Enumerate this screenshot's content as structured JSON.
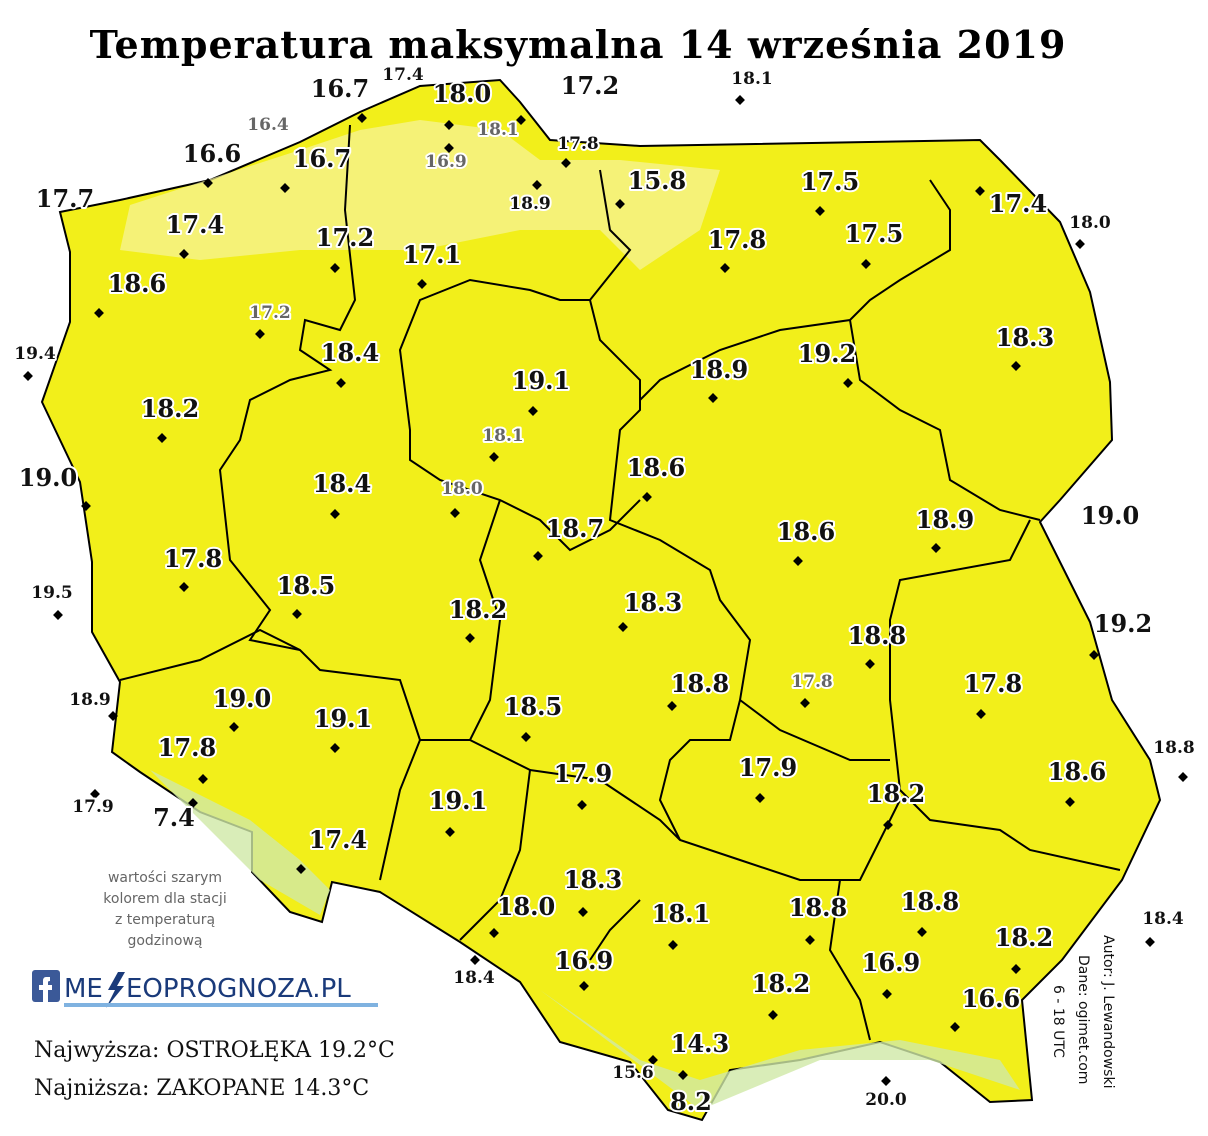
{
  "title": "Temperatura maksymalna 14 września 2019",
  "note": [
    "wartości szarym",
    "kolorem dla stacji",
    "z temperaturą",
    "godzinową"
  ],
  "logo": [
    "ME",
    "EOPROGNOZA.PL"
  ],
  "highest": "Najwyższa: OSTROŁĘKA 19.2°C",
  "lowest": "Najniższa: ZAKOPANE 14.3°C",
  "credits": [
    "Autor: J. Lewandowski",
    "Dane: ogimet.com",
    "6 - 18 UTC"
  ],
  "stations": [
    {
      "temp": "17.4",
      "gray": false
    },
    {
      "temp": "16.7",
      "gray": false
    },
    {
      "temp": "18.0",
      "gray": false
    },
    {
      "temp": "17.2",
      "gray": false
    },
    {
      "temp": "18.1",
      "gray": false
    },
    {
      "temp": "16.4",
      "gray": true
    },
    {
      "temp": "18.1",
      "gray": true
    },
    {
      "temp": "17.8",
      "gray": false
    },
    {
      "temp": "16.9",
      "gray": true
    },
    {
      "temp": "16.6",
      "gray": false
    },
    {
      "temp": "16.7",
      "gray": false
    },
    {
      "temp": "18.9",
      "gray": false
    },
    {
      "temp": "15.8",
      "gray": false
    },
    {
      "temp": "17.5",
      "gray": false
    },
    {
      "temp": "17.7",
      "gray": false
    },
    {
      "temp": "17.4",
      "gray": false
    },
    {
      "temp": "18.0",
      "gray": false
    },
    {
      "temp": "17.4",
      "gray": false
    },
    {
      "temp": "17.2",
      "gray": false
    },
    {
      "temp": "17.8",
      "gray": false
    },
    {
      "temp": "17.5",
      "gray": false
    },
    {
      "temp": "17.1",
      "gray": false
    },
    {
      "temp": "18.6",
      "gray": false
    },
    {
      "temp": "17.2",
      "gray": true
    },
    {
      "temp": "19.4",
      "gray": false
    },
    {
      "temp": "18.4",
      "gray": false
    },
    {
      "temp": "19.1",
      "gray": false
    },
    {
      "temp": "18.9",
      "gray": false
    },
    {
      "temp": "19.2",
      "gray": false
    },
    {
      "temp": "18.3",
      "gray": false
    },
    {
      "temp": "18.2",
      "gray": false
    },
    {
      "temp": "18.1",
      "gray": true
    },
    {
      "temp": "19.0",
      "gray": false
    },
    {
      "temp": "18.4",
      "gray": false
    },
    {
      "temp": "18.0",
      "gray": true
    },
    {
      "temp": "18.6",
      "gray": false
    },
    {
      "temp": "18.7",
      "gray": false
    },
    {
      "temp": "18.6",
      "gray": false
    },
    {
      "temp": "18.9",
      "gray": false
    },
    {
      "temp": "19.0",
      "gray": false
    },
    {
      "temp": "17.8",
      "gray": false
    },
    {
      "temp": "19.5",
      "gray": false
    },
    {
      "temp": "18.5",
      "gray": false
    },
    {
      "temp": "18.3",
      "gray": false
    },
    {
      "temp": "18.2",
      "gray": false
    },
    {
      "temp": "19.2",
      "gray": false
    },
    {
      "temp": "18.8",
      "gray": false
    },
    {
      "temp": "17.8",
      "gray": true
    },
    {
      "temp": "18.8",
      "gray": false
    },
    {
      "temp": "17.8",
      "gray": false
    },
    {
      "temp": "18.9",
      "gray": false
    },
    {
      "temp": "19.0",
      "gray": false
    },
    {
      "temp": "19.1",
      "gray": false
    },
    {
      "temp": "18.5",
      "gray": false
    },
    {
      "temp": "17.8",
      "gray": false
    },
    {
      "temp": "18.8",
      "gray": false
    },
    {
      "temp": "17.9",
      "gray": false
    },
    {
      "temp": "17.9",
      "gray": false
    },
    {
      "temp": "18.6",
      "gray": false
    },
    {
      "temp": "17.9",
      "gray": false
    },
    {
      "temp": "7.4",
      "gray": false
    },
    {
      "temp": "18.2",
      "gray": false
    },
    {
      "temp": "19.1",
      "gray": false
    },
    {
      "temp": "17.4",
      "gray": false
    },
    {
      "temp": "18.3",
      "gray": false
    },
    {
      "temp": "18.8",
      "gray": false
    },
    {
      "temp": "18.8",
      "gray": false
    },
    {
      "temp": "18.0",
      "gray": false
    },
    {
      "temp": "18.1",
      "gray": false
    },
    {
      "temp": "18.4",
      "gray": false
    },
    {
      "temp": "18.2",
      "gray": false
    },
    {
      "temp": "18.4",
      "gray": false
    },
    {
      "temp": "16.9",
      "gray": false
    },
    {
      "temp": "16.9",
      "gray": false
    },
    {
      "temp": "18.2",
      "gray": false
    },
    {
      "temp": "16.6",
      "gray": false
    },
    {
      "temp": "14.3",
      "gray": false
    },
    {
      "temp": "15.6",
      "gray": false
    },
    {
      "temp": "8.2",
      "gray": false
    },
    {
      "temp": "20.0",
      "gray": false
    }
  ]
}
